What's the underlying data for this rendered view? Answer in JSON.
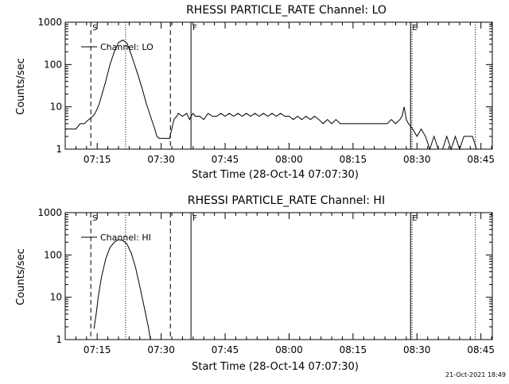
{
  "chart_data": [
    {
      "type": "line",
      "title": "RHESSI PARTICLE_RATE Channel: LO",
      "xlabel": "Start Time (28-Oct-14 07:07:30)",
      "ylabel": "Counts/sec",
      "yscale": "log",
      "xlim": [
        "07:07:30",
        "08:47:40"
      ],
      "ylim": [
        1,
        1000
      ],
      "xticks": [
        "07:15",
        "07:30",
        "07:45",
        "08:00",
        "08:15",
        "08:30",
        "08:45"
      ],
      "yticks": [
        "1",
        "10",
        "100",
        "1000"
      ],
      "legend_position": "top-left",
      "markers": [
        {
          "label": "S",
          "time": "07:13:30",
          "style": "dashed"
        },
        {
          "label": "",
          "time": "07:21:40",
          "style": "dotted"
        },
        {
          "label": "",
          "time": "07:32:10",
          "style": "dashed"
        },
        {
          "label": "F",
          "time": "07:37:00",
          "style": "solid"
        },
        {
          "label": "E",
          "time": "08:28:30",
          "style": "solid"
        },
        {
          "label": "",
          "time": "08:28:50",
          "style": "dotted"
        },
        {
          "label": "",
          "time": "08:43:40",
          "style": "dotted"
        }
      ],
      "series": [
        {
          "name": "Channel: LO",
          "x": [
            "07:07:30",
            "07:10:00",
            "07:11:00",
            "07:12:00",
            "07:13:00",
            "07:14:00",
            "07:14:30",
            "07:15:00",
            "07:15:30",
            "07:16:00",
            "07:17:00",
            "07:18:00",
            "07:19:00",
            "07:20:00",
            "07:21:00",
            "07:22:00",
            "07:22:45",
            "07:23:30",
            "07:24:30",
            "07:25:30",
            "07:26:30",
            "07:27:30",
            "07:28:30",
            "07:29:00",
            "07:29:30",
            "07:30:00",
            "07:31:00",
            "07:32:00",
            "07:33:00",
            "07:33:40",
            "07:34:00",
            "07:35:00",
            "07:36:00",
            "07:36:40",
            "07:37:00",
            "07:37:30",
            "07:38:00",
            "07:39:00",
            "07:40:00",
            "07:41:00",
            "07:42:00",
            "07:43:00",
            "07:44:00",
            "07:45:00",
            "07:46:00",
            "07:47:00",
            "07:48:00",
            "07:49:00",
            "07:50:00",
            "07:51:00",
            "07:52:00",
            "07:53:00",
            "07:54:00",
            "07:55:00",
            "07:56:00",
            "07:57:00",
            "07:58:00",
            "07:59:00",
            "08:00:00",
            "08:01:00",
            "08:02:00",
            "08:03:00",
            "08:04:00",
            "08:05:00",
            "08:06:00",
            "08:07:00",
            "08:08:00",
            "08:09:00",
            "08:10:00",
            "08:11:00",
            "08:12:00",
            "08:13:00",
            "08:14:00",
            "08:15:00",
            "08:16:00",
            "08:17:00",
            "08:18:00",
            "08:19:00",
            "08:20:00",
            "08:21:00",
            "08:22:00",
            "08:23:00",
            "08:24:00",
            "08:25:00",
            "08:26:00",
            "08:26:30",
            "08:27:00",
            "08:27:30",
            "08:28:00",
            "08:29:00",
            "08:30:00",
            "08:31:00",
            "08:32:00",
            "08:33:00",
            "08:34:00",
            "08:35:00",
            "08:36:00",
            "08:37:00",
            "08:38:00",
            "08:39:00",
            "08:40:00",
            "08:41:00",
            "08:42:00",
            "08:43:00",
            "08:44:00"
          ],
          "y": [
            3,
            3,
            4,
            4,
            5,
            6,
            7,
            9,
            12,
            18,
            40,
            100,
            200,
            330,
            380,
            320,
            200,
            120,
            60,
            28,
            12,
            6,
            3,
            2,
            1.8,
            1.8,
            1.8,
            1.8,
            5,
            6,
            7,
            6,
            7,
            5,
            6,
            7,
            6,
            6,
            5,
            7,
            6,
            6,
            7,
            6,
            7,
            6,
            7,
            6,
            7,
            6,
            7,
            6,
            7,
            6,
            7,
            6,
            7,
            6,
            6,
            5,
            6,
            5,
            6,
            5,
            6,
            5,
            4,
            5,
            4,
            5,
            4,
            4,
            4,
            4,
            4,
            4,
            4,
            4,
            4,
            4,
            4,
            4,
            5,
            4,
            5,
            6,
            10,
            5,
            4,
            3,
            2,
            3,
            2,
            1,
            2,
            1,
            1,
            2,
            1,
            2,
            1,
            2,
            2,
            2,
            1
          ]
        }
      ]
    },
    {
      "type": "line",
      "title": "RHESSI PARTICLE_RATE Channel: HI",
      "xlabel": "Start Time (28-Oct-14 07:07:30)",
      "ylabel": "Counts/sec",
      "yscale": "log",
      "xlim": [
        "07:07:30",
        "08:47:40"
      ],
      "ylim": [
        1,
        1000
      ],
      "xticks": [
        "07:15",
        "07:30",
        "07:45",
        "08:00",
        "08:15",
        "08:30",
        "08:45"
      ],
      "yticks": [
        "1",
        "10",
        "100",
        "1000"
      ],
      "legend_position": "top-left",
      "markers": [
        {
          "label": "S",
          "time": "07:13:30",
          "style": "dashed"
        },
        {
          "label": "",
          "time": "07:21:40",
          "style": "dotted"
        },
        {
          "label": "",
          "time": "07:32:10",
          "style": "dashed"
        },
        {
          "label": "F",
          "time": "07:37:00",
          "style": "solid"
        },
        {
          "label": "E",
          "time": "08:28:30",
          "style": "solid"
        },
        {
          "label": "",
          "time": "08:28:50",
          "style": "dotted"
        },
        {
          "label": "",
          "time": "08:43:40",
          "style": "dotted"
        }
      ],
      "series": [
        {
          "name": "Channel: HI",
          "x": [
            "07:14:15",
            "07:14:45",
            "07:15:15",
            "07:16:00",
            "07:17:00",
            "07:18:00",
            "07:19:00",
            "07:20:00",
            "07:21:00",
            "07:22:00",
            "07:23:00",
            "07:24:00",
            "07:25:00",
            "07:26:00",
            "07:27:00",
            "07:27:30"
          ],
          "y": [
            1.8,
            4,
            10,
            30,
            80,
            150,
            200,
            230,
            220,
            180,
            110,
            50,
            18,
            6,
            2,
            1
          ]
        }
      ]
    }
  ],
  "footer": {
    "timestamp": "21-Oct-2021 18:49"
  }
}
